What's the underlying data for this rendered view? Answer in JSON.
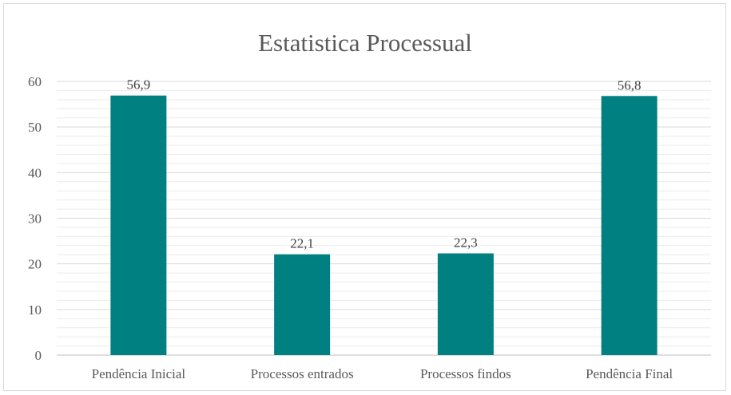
{
  "chart_data": {
    "type": "bar",
    "title": "Estatistica Processual",
    "categories": [
      "Pendência Inicial",
      "Processos entrados",
      "Processos findos",
      "Pendência Final"
    ],
    "values": [
      56.9,
      22.1,
      22.3,
      56.8
    ],
    "value_labels": [
      "56,9",
      "22,1",
      "22,3",
      "56,8"
    ],
    "ylim": [
      0,
      60
    ],
    "yticks": [
      0,
      10,
      20,
      30,
      40,
      50,
      60
    ],
    "minor_grid_step": 2,
    "grid": true,
    "bar_color": "#008080",
    "xlabel": "",
    "ylabel": ""
  }
}
